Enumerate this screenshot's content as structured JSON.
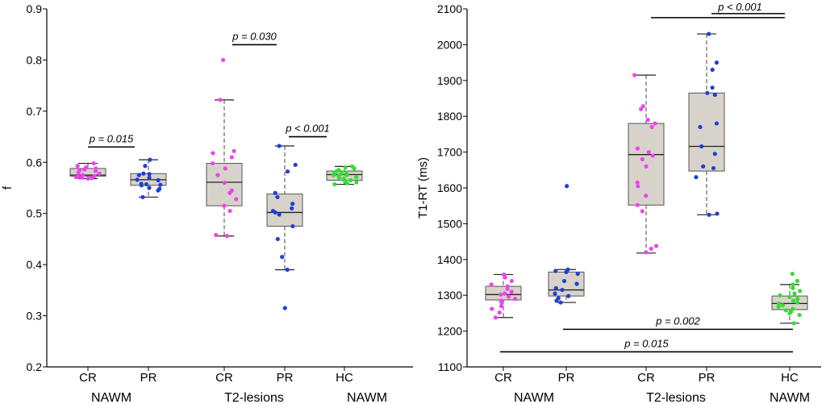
{
  "chart_data": [
    {
      "type": "box",
      "ylabel": "f",
      "ylim": [
        0.2,
        0.9
      ],
      "yticks": [
        0.2,
        0.3,
        0.4,
        0.5,
        0.6,
        0.7,
        0.8,
        0.9
      ],
      "tick_labels": [
        "0.2",
        "0.3",
        "0.4",
        "0.5",
        "0.6",
        "0.7",
        "0.8",
        "0.9"
      ],
      "categories": [
        "CR",
        "PR",
        "CR",
        "PR",
        "HC"
      ],
      "groups": [
        "NAWM",
        "T2-lesions",
        "NAWM"
      ],
      "colors": [
        "#ee44ee",
        "#1f3fd6",
        "#ee44ee",
        "#1f3fd6",
        "#33dd33"
      ],
      "boxes": [
        {
          "whislo": 0.568,
          "q1": 0.573,
          "med": 0.575,
          "q3": 0.588,
          "whishi": 0.598
        },
        {
          "whislo": 0.532,
          "q1": 0.555,
          "med": 0.566,
          "q3": 0.578,
          "whishi": 0.605
        },
        {
          "whislo": 0.456,
          "q1": 0.515,
          "med": 0.561,
          "q3": 0.598,
          "whishi": 0.722
        },
        {
          "whislo": 0.39,
          "q1": 0.475,
          "med": 0.502,
          "q3": 0.538,
          "whishi": 0.632
        },
        {
          "whislo": 0.557,
          "q1": 0.565,
          "med": 0.576,
          "q3": 0.583,
          "whishi": 0.592
        }
      ],
      "points": [
        [
          0.598,
          0.593,
          0.59,
          0.588,
          0.585,
          0.583,
          0.58,
          0.578,
          0.575,
          0.573,
          0.571,
          0.57,
          0.569,
          0.568,
          0.572,
          0.586
        ],
        [
          0.605,
          0.593,
          0.578,
          0.577,
          0.575,
          0.566,
          0.565,
          0.558,
          0.557,
          0.556,
          0.555,
          0.55,
          0.548,
          0.545,
          0.532,
          0.57
        ],
        [
          0.8,
          0.722,
          0.622,
          0.618,
          0.61,
          0.598,
          0.588,
          0.575,
          0.56,
          0.545,
          0.54,
          0.528,
          0.515,
          0.505,
          0.458,
          0.456
        ],
        [
          0.632,
          0.595,
          0.582,
          0.54,
          0.532,
          0.519,
          0.51,
          0.505,
          0.502,
          0.498,
          0.475,
          0.45,
          0.415,
          0.39,
          0.315
        ],
        [
          0.592,
          0.59,
          0.588,
          0.585,
          0.583,
          0.58,
          0.578,
          0.576,
          0.575,
          0.573,
          0.571,
          0.57,
          0.568,
          0.566,
          0.565,
          0.563,
          0.561,
          0.559,
          0.557,
          0.575,
          0.58
        ]
      ],
      "annotations": [
        {
          "text": "p = 0.015",
          "from": 0,
          "to": 1,
          "y": 0.63
        },
        {
          "text": "p = 0.030",
          "from": 2,
          "to": 3,
          "y": 0.83
        },
        {
          "text": "p < 0.001",
          "from": 3,
          "to": 4,
          "y": 0.65
        }
      ]
    },
    {
      "type": "box",
      "ylabel": "T1-RT (ms)",
      "ylim": [
        1100,
        2100
      ],
      "yticks": [
        1100,
        1200,
        1300,
        1400,
        1500,
        1600,
        1700,
        1800,
        1900,
        2000,
        2100
      ],
      "tick_labels": [
        "1100",
        "1200",
        "1300",
        "1400",
        "1500",
        "1600",
        "1700",
        "1800",
        "1900",
        "2000",
        "2100"
      ],
      "categories": [
        "CR",
        "PR",
        "CR",
        "PR",
        "HC"
      ],
      "groups": [
        "NAWM",
        "T2-lesions",
        "NAWM"
      ],
      "colors": [
        "#ee44ee",
        "#1f3fd6",
        "#ee44ee",
        "#1f3fd6",
        "#33dd33"
      ],
      "boxes": [
        {
          "whislo": 1238,
          "q1": 1287,
          "med": 1302,
          "q3": 1325,
          "whishi": 1358
        },
        {
          "whislo": 1280,
          "q1": 1298,
          "med": 1315,
          "q3": 1365,
          "whishi": 1372
        },
        {
          "whislo": 1418,
          "q1": 1552,
          "med": 1693,
          "q3": 1780,
          "whishi": 1915
        },
        {
          "whislo": 1525,
          "q1": 1647,
          "med": 1716,
          "q3": 1865,
          "whishi": 2030
        },
        {
          "whislo": 1222,
          "q1": 1260,
          "med": 1277,
          "q3": 1298,
          "whishi": 1330
        }
      ],
      "points": [
        [
          1358,
          1350,
          1340,
          1330,
          1325,
          1318,
          1310,
          1305,
          1302,
          1296,
          1290,
          1285,
          1278,
          1270,
          1262,
          1252,
          1238
        ],
        [
          1605,
          1372,
          1368,
          1365,
          1360,
          1340,
          1332,
          1320,
          1315,
          1305,
          1298,
          1292,
          1285,
          1280
        ],
        [
          1915,
          1828,
          1820,
          1790,
          1780,
          1770,
          1710,
          1700,
          1690,
          1680,
          1660,
          1615,
          1605,
          1578,
          1552,
          1535,
          1438,
          1430,
          1420
        ],
        [
          2030,
          1950,
          1930,
          1880,
          1865,
          1860,
          1780,
          1770,
          1716,
          1695,
          1660,
          1655,
          1630,
          1528,
          1525
        ],
        [
          1360,
          1340,
          1330,
          1320,
          1312,
          1305,
          1300,
          1295,
          1290,
          1285,
          1280,
          1277,
          1272,
          1268,
          1262,
          1258,
          1255,
          1250,
          1245,
          1222
        ]
      ],
      "annotations": [
        {
          "text": "p < 0.001",
          "from": 2,
          "to": 4,
          "y": 2080
        },
        {
          "text": "p = 0.002",
          "from": 1,
          "to": 4,
          "y": 1205
        },
        {
          "text": "p = 0.015",
          "from": 0,
          "to": 4,
          "y": 1142
        }
      ]
    }
  ]
}
